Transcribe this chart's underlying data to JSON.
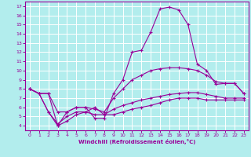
{
  "xlabel": "Windchill (Refroidissement éolien,°C)",
  "bg_color": "#b2eded",
  "grid_color": "#ffffff",
  "line_color": "#990099",
  "xlim": [
    -0.5,
    23.5
  ],
  "ylim": [
    3.5,
    17.5
  ],
  "xticks": [
    0,
    1,
    2,
    3,
    4,
    5,
    6,
    7,
    8,
    9,
    10,
    11,
    12,
    13,
    14,
    15,
    16,
    17,
    18,
    19,
    20,
    21,
    22,
    23
  ],
  "yticks": [
    4,
    5,
    6,
    7,
    8,
    9,
    10,
    11,
    12,
    13,
    14,
    15,
    16,
    17
  ],
  "line1_x": [
    0,
    1,
    2,
    3,
    4,
    5,
    6,
    7,
    8,
    9,
    10,
    11,
    12,
    13,
    14,
    15,
    16,
    17,
    18,
    19,
    20,
    21,
    22,
    23
  ],
  "line1_y": [
    8.0,
    7.5,
    7.5,
    4.0,
    5.5,
    6.0,
    6.0,
    4.8,
    4.8,
    7.5,
    9.0,
    12.0,
    12.2,
    14.2,
    16.7,
    16.9,
    16.6,
    15.0,
    10.7,
    10.0,
    8.5,
    8.6,
    8.6,
    7.5
  ],
  "line2_x": [
    0,
    1,
    2,
    3,
    4,
    5,
    6,
    7,
    8,
    9,
    10,
    11,
    12,
    13,
    14,
    15,
    16,
    17,
    18,
    19,
    20,
    21,
    22,
    23
  ],
  "line2_y": [
    8.0,
    7.5,
    7.5,
    5.5,
    5.5,
    6.0,
    6.0,
    5.8,
    5.5,
    7.0,
    8.0,
    9.0,
    9.5,
    10.0,
    10.2,
    10.3,
    10.3,
    10.2,
    10.0,
    9.5,
    8.8,
    8.6,
    8.6,
    7.5
  ],
  "line3_x": [
    0,
    1,
    2,
    3,
    4,
    5,
    6,
    7,
    8,
    9,
    10,
    11,
    12,
    13,
    14,
    15,
    16,
    17,
    18,
    19,
    20,
    21,
    22,
    23
  ],
  "line3_y": [
    8.0,
    7.5,
    5.5,
    4.2,
    5.0,
    5.5,
    5.5,
    5.2,
    5.2,
    5.8,
    6.2,
    6.5,
    6.8,
    7.0,
    7.2,
    7.4,
    7.5,
    7.6,
    7.6,
    7.4,
    7.2,
    7.0,
    7.0,
    7.0
  ],
  "line4_x": [
    0,
    1,
    2,
    3,
    4,
    5,
    6,
    7,
    8,
    9,
    10,
    11,
    12,
    13,
    14,
    15,
    16,
    17,
    18,
    19,
    20,
    21,
    22,
    23
  ],
  "line4_y": [
    8.0,
    7.5,
    5.5,
    4.0,
    4.5,
    5.2,
    5.5,
    6.0,
    5.2,
    5.2,
    5.5,
    5.8,
    6.0,
    6.2,
    6.5,
    6.8,
    7.0,
    7.0,
    7.0,
    6.8,
    6.8,
    6.8,
    6.8,
    6.8
  ]
}
